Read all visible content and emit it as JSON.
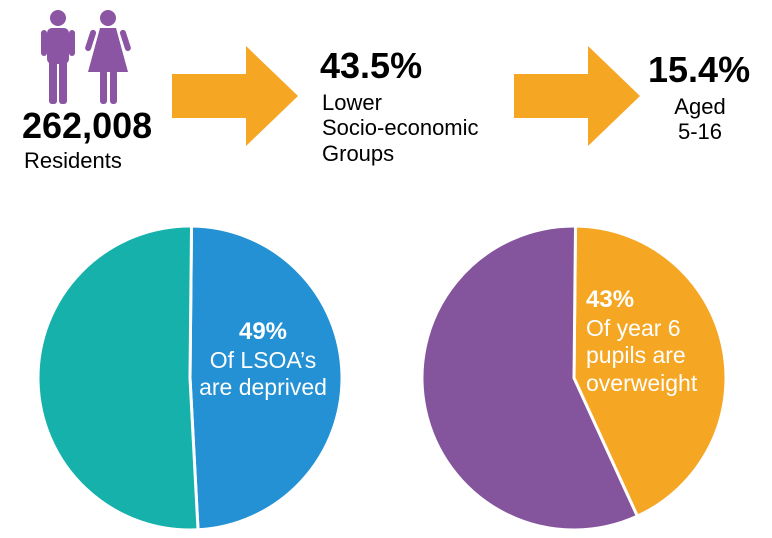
{
  "stats": {
    "residents_value": "262,008",
    "residents_label": "Residents",
    "socio_value": "43.5%",
    "socio_label_line1": "Lower",
    "socio_label_line2": "Socio-economic",
    "socio_label_line3": "Groups",
    "aged_value": "15.4%",
    "aged_label_line1": "Aged",
    "aged_label_line2": "5-16"
  },
  "icons": {
    "male": "male-person-icon",
    "female": "female-person-icon",
    "arrow": "arrow-right-icon"
  },
  "colors": {
    "purple": "#8b55a3",
    "orange": "#f5a623",
    "teal": "#16b1ab",
    "blue": "#2391d3",
    "pie_purple": "#84559d"
  },
  "chart_data": [
    {
      "type": "pie",
      "slices": [
        {
          "label": "Of LSOA's are deprived",
          "value": 49,
          "color": "#2391d3"
        },
        {
          "label": "",
          "value": 51,
          "color": "#16b1ab"
        }
      ],
      "annotation_pct": "49%",
      "annotation_line1": "Of LSOA’s",
      "annotation_line2": "are deprived"
    },
    {
      "type": "pie",
      "slices": [
        {
          "label": "Of year 6 pupils are overweight",
          "value": 43,
          "color": "#f5a623"
        },
        {
          "label": "",
          "value": 57,
          "color": "#84559d"
        }
      ],
      "annotation_pct": "43%",
      "annotation_line1": "Of year 6",
      "annotation_line2": "pupils are",
      "annotation_line3": "overweight"
    }
  ]
}
